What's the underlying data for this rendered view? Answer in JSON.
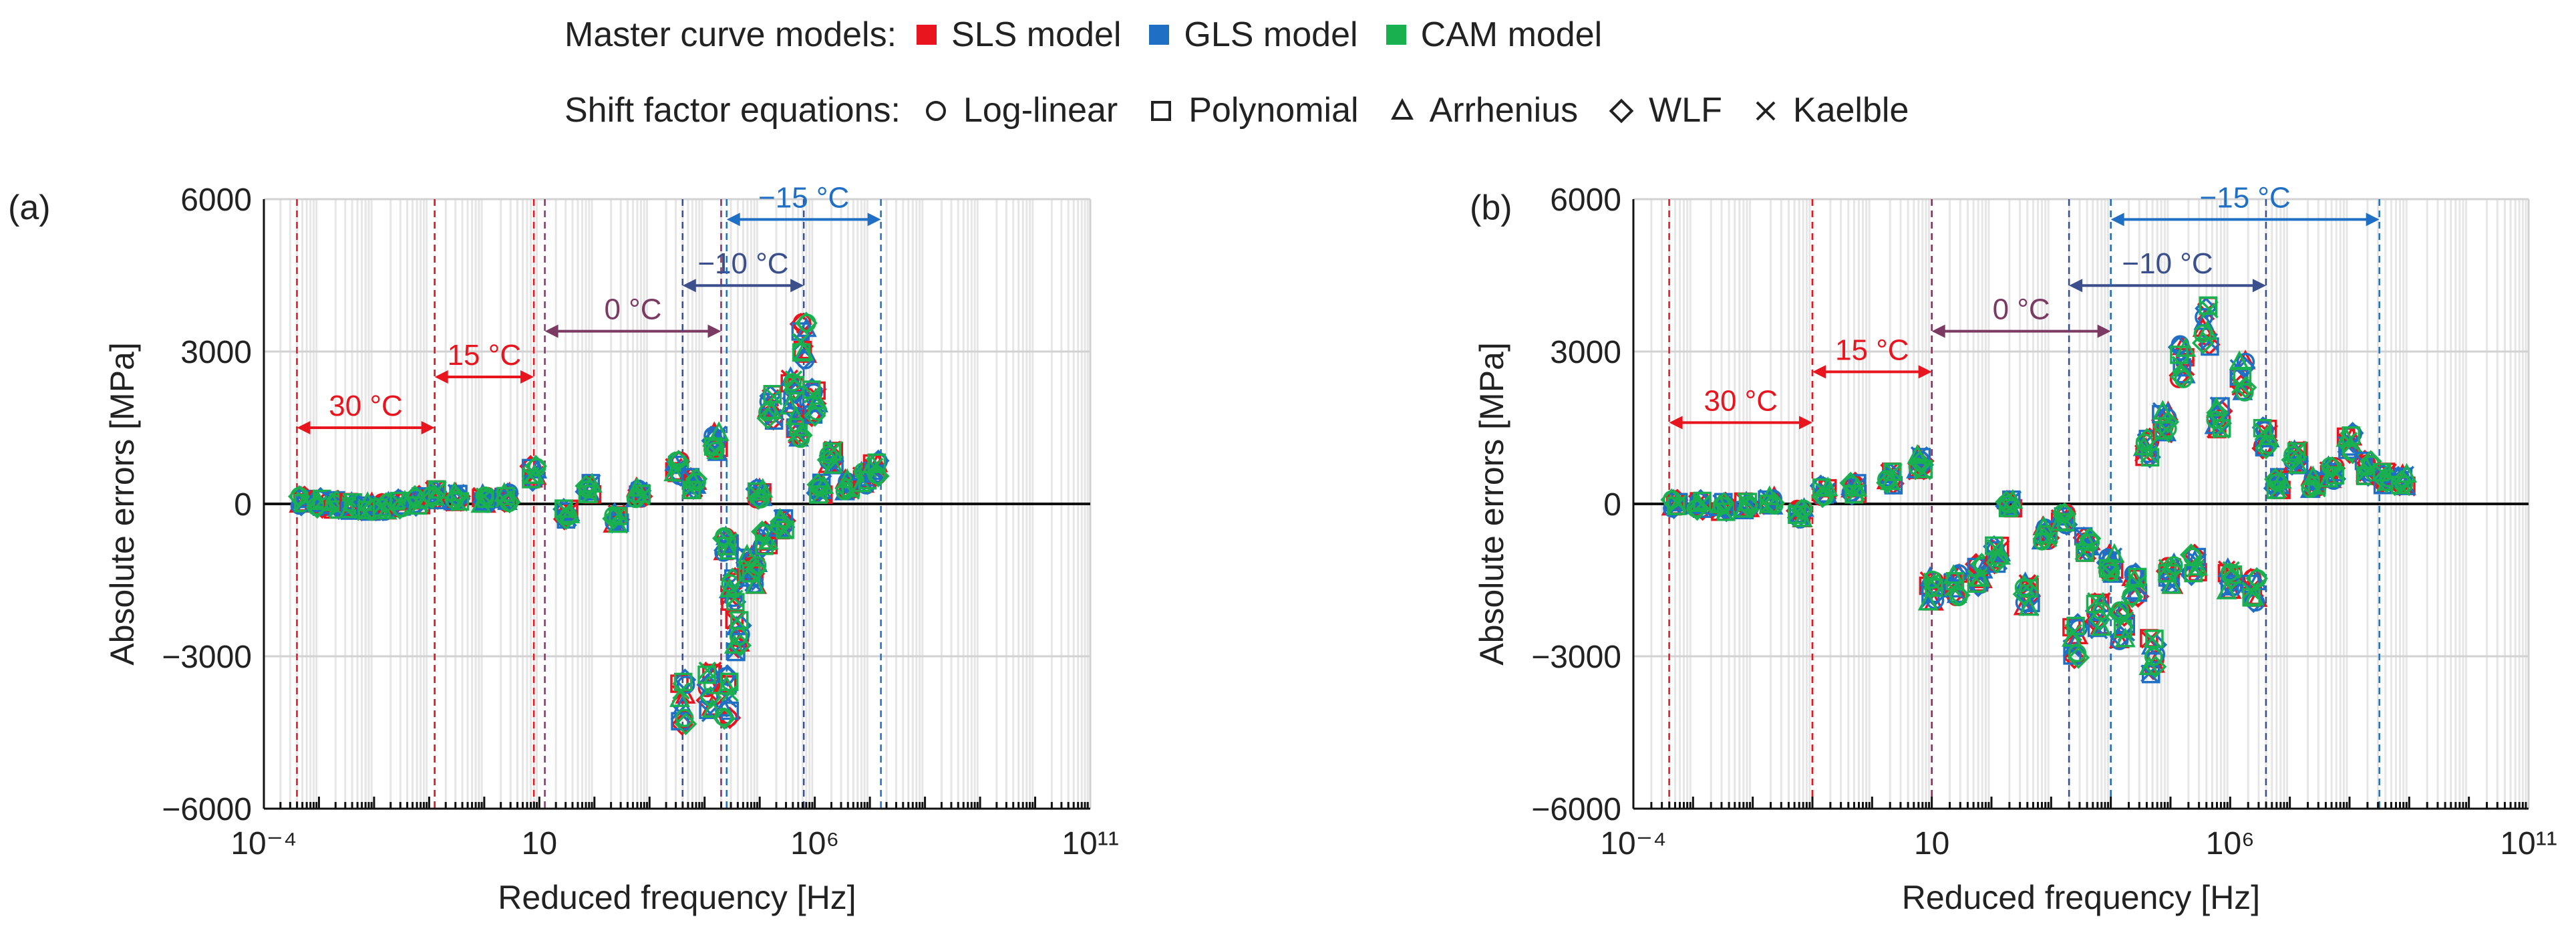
{
  "legend": {
    "models_title": "Master curve models:",
    "models": [
      {
        "name": "SLS model",
        "color": "#e8141e"
      },
      {
        "name": "GLS model",
        "color": "#1f6fc5"
      },
      {
        "name": "CAM model",
        "color": "#19b050"
      }
    ],
    "shift_title": "Shift factor equations:",
    "shifts": [
      {
        "name": "Log-linear",
        "marker": "circle"
      },
      {
        "name": "Polynomial",
        "marker": "square"
      },
      {
        "name": "Arrhenius",
        "marker": "triangle"
      },
      {
        "name": "WLF",
        "marker": "diamond"
      },
      {
        "name": "Kaelble",
        "marker": "cross"
      }
    ]
  },
  "chart_data": [
    {
      "panel": "(a)",
      "type": "scatter",
      "xlabel": "Reduced frequency [Hz]",
      "ylabel": "Absolute errors [MPa]",
      "x_scale": "log",
      "xlim_exp": [
        -4,
        11
      ],
      "x_tick_labels": [
        "10⁻⁴",
        "10",
        "10⁶",
        "10¹¹"
      ],
      "ylim": [
        -6000,
        6000
      ],
      "y_tick_labels": [
        "6000",
        "3000",
        "0",
        "−3000",
        "−6000"
      ],
      "grid": "horizontal",
      "temperature_ranges": [
        {
          "label": "30 °C",
          "from_exp": -3.4,
          "to_exp": -0.9,
          "color": "#e8141e",
          "y": 1500
        },
        {
          "label": "15 °C",
          "from_exp": -0.9,
          "to_exp": 0.9,
          "color": "#e8141e",
          "y": 2500
        },
        {
          "label": "0 °C",
          "from_exp": 1.1,
          "to_exp": 4.3,
          "color": "#7b3a62",
          "y": 3400
        },
        {
          "label": "−10 °C",
          "from_exp": 3.6,
          "to_exp": 5.8,
          "color": "#3a4f8c",
          "y": 4300
        },
        {
          "label": "−15 °C",
          "from_exp": 4.4,
          "to_exp": 7.2,
          "color": "#1f6fc5",
          "y": 5600
        }
      ],
      "clusters": [
        {
          "x_exp": -3.3,
          "y": 60
        },
        {
          "x_exp": -3.0,
          "y": 20
        },
        {
          "x_exp": -2.7,
          "y": -20
        },
        {
          "x_exp": -2.4,
          "y": -50
        },
        {
          "x_exp": -2.1,
          "y": -80
        },
        {
          "x_exp": -1.8,
          "y": -60
        },
        {
          "x_exp": -1.5,
          "y": 0
        },
        {
          "x_exp": -1.2,
          "y": 60
        },
        {
          "x_exp": -0.9,
          "y": 180
        },
        {
          "x_exp": -0.5,
          "y": 120
        },
        {
          "x_exp": 0.0,
          "y": 80
        },
        {
          "x_exp": 0.4,
          "y": 120
        },
        {
          "x_exp": 0.9,
          "y": 600
        },
        {
          "x_exp": 1.5,
          "y": -200
        },
        {
          "x_exp": 1.9,
          "y": 300
        },
        {
          "x_exp": 2.4,
          "y": -300
        },
        {
          "x_exp": 2.8,
          "y": 200
        },
        {
          "x_exp": 3.5,
          "y": 700
        },
        {
          "x_exp": 3.6,
          "y": -3900
        },
        {
          "x_exp": 3.8,
          "y": 400
        },
        {
          "x_exp": 4.1,
          "y": -3700
        },
        {
          "x_exp": 4.2,
          "y": 1200
        },
        {
          "x_exp": 4.4,
          "y": -800
        },
        {
          "x_exp": 4.4,
          "y": -3800
        },
        {
          "x_exp": 4.5,
          "y": -1700
        },
        {
          "x_exp": 4.6,
          "y": -2600
        },
        {
          "x_exp": 4.8,
          "y": -1200
        },
        {
          "x_exp": 4.9,
          "y": -1400
        },
        {
          "x_exp": 5.0,
          "y": 200
        },
        {
          "x_exp": 5.1,
          "y": -700
        },
        {
          "x_exp": 5.2,
          "y": 1900
        },
        {
          "x_exp": 5.4,
          "y": -400
        },
        {
          "x_exp": 5.6,
          "y": 2200
        },
        {
          "x_exp": 5.7,
          "y": 1500
        },
        {
          "x_exp": 5.8,
          "y": 3200
        },
        {
          "x_exp": 6.0,
          "y": 2000
        },
        {
          "x_exp": 6.1,
          "y": 300
        },
        {
          "x_exp": 6.3,
          "y": 900
        },
        {
          "x_exp": 6.6,
          "y": 350
        },
        {
          "x_exp": 6.9,
          "y": 500
        },
        {
          "x_exp": 7.1,
          "y": 700
        }
      ]
    },
    {
      "panel": "(b)",
      "type": "scatter",
      "xlabel": "Reduced frequency [Hz]",
      "ylabel": "Absolute errors [MPa]",
      "x_scale": "log",
      "xlim_exp": [
        -4,
        11
      ],
      "x_tick_labels": [
        "10⁻⁴",
        "10",
        "10⁶",
        "10¹¹"
      ],
      "ylim": [
        -6000,
        6000
      ],
      "y_tick_labels": [
        "6000",
        "3000",
        "0",
        "−3000",
        "−6000"
      ],
      "grid": "horizontal",
      "temperature_ranges": [
        {
          "label": "30 °C",
          "from_exp": -3.4,
          "to_exp": -1.0,
          "color": "#e8141e",
          "y": 1600
        },
        {
          "label": "15 °C",
          "from_exp": -1.0,
          "to_exp": 1.0,
          "color": "#e8141e",
          "y": 2600
        },
        {
          "label": "0 °C",
          "from_exp": 1.0,
          "to_exp": 4.0,
          "color": "#7b3a62",
          "y": 3400
        },
        {
          "label": "−10 °C",
          "from_exp": 3.3,
          "to_exp": 6.6,
          "color": "#3a4f8c",
          "y": 4300
        },
        {
          "label": "−15 °C",
          "from_exp": 4.0,
          "to_exp": 8.5,
          "color": "#1f6fc5",
          "y": 5600
        }
      ],
      "clusters": [
        {
          "x_exp": -3.3,
          "y": 0
        },
        {
          "x_exp": -2.9,
          "y": -20
        },
        {
          "x_exp": -2.5,
          "y": -60
        },
        {
          "x_exp": -2.1,
          "y": -40
        },
        {
          "x_exp": -1.7,
          "y": 40
        },
        {
          "x_exp": -1.2,
          "y": -200
        },
        {
          "x_exp": -0.8,
          "y": 250
        },
        {
          "x_exp": -0.3,
          "y": 300
        },
        {
          "x_exp": 0.3,
          "y": 500
        },
        {
          "x_exp": 0.8,
          "y": 800
        },
        {
          "x_exp": 1.0,
          "y": -1700
        },
        {
          "x_exp": 1.4,
          "y": -1600
        },
        {
          "x_exp": 1.8,
          "y": -1400
        },
        {
          "x_exp": 2.1,
          "y": -1000
        },
        {
          "x_exp": 2.3,
          "y": 0
        },
        {
          "x_exp": 2.6,
          "y": -1800
        },
        {
          "x_exp": 2.9,
          "y": -600
        },
        {
          "x_exp": 3.2,
          "y": -300
        },
        {
          "x_exp": 3.4,
          "y": -2700
        },
        {
          "x_exp": 3.6,
          "y": -800
        },
        {
          "x_exp": 3.8,
          "y": -2200
        },
        {
          "x_exp": 4.0,
          "y": -1200
        },
        {
          "x_exp": 4.2,
          "y": -2400
        },
        {
          "x_exp": 4.4,
          "y": -1600
        },
        {
          "x_exp": 4.6,
          "y": 1100
        },
        {
          "x_exp": 4.7,
          "y": -3000
        },
        {
          "x_exp": 4.9,
          "y": 1600
        },
        {
          "x_exp": 5.0,
          "y": -1400
        },
        {
          "x_exp": 5.2,
          "y": 2800
        },
        {
          "x_exp": 5.4,
          "y": -1200
        },
        {
          "x_exp": 5.6,
          "y": 3500
        },
        {
          "x_exp": 5.8,
          "y": 1700
        },
        {
          "x_exp": 6.0,
          "y": -1500
        },
        {
          "x_exp": 6.2,
          "y": 2500
        },
        {
          "x_exp": 6.4,
          "y": -1700
        },
        {
          "x_exp": 6.6,
          "y": 1300
        },
        {
          "x_exp": 6.8,
          "y": 400
        },
        {
          "x_exp": 7.1,
          "y": 900
        },
        {
          "x_exp": 7.4,
          "y": 400
        },
        {
          "x_exp": 7.7,
          "y": 600
        },
        {
          "x_exp": 8.0,
          "y": 1200
        },
        {
          "x_exp": 8.3,
          "y": 700
        },
        {
          "x_exp": 8.6,
          "y": 500
        },
        {
          "x_exp": 8.9,
          "y": 450
        }
      ]
    }
  ]
}
